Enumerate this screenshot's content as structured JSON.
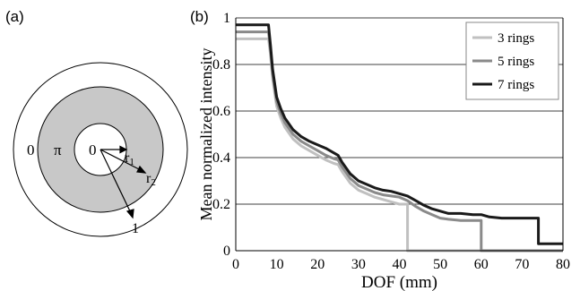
{
  "panel_a": {
    "label": "(a)",
    "zone_labels": {
      "center": "0",
      "ring": "π",
      "outer": "0"
    },
    "radius_labels": {
      "r1": "r",
      "r1_sub": "1",
      "r2": "r",
      "r2_sub": "2",
      "edge": "1"
    }
  },
  "chart_data": {
    "panel_label": "(b)",
    "type": "line",
    "xlabel": "DOF (mm)",
    "ylabel": "Mean normalized intensity",
    "xlim": [
      0,
      80
    ],
    "ylim": [
      0,
      1
    ],
    "x_ticks": [
      "0",
      "10",
      "20",
      "30",
      "40",
      "50",
      "60",
      "70",
      "80"
    ],
    "y_ticks": [
      "0",
      "0.2",
      "0.4",
      "0.6",
      "0.8",
      "1"
    ],
    "grid": "horizontal",
    "legend_position": "top-right",
    "colors": {
      "3 rings": "#c0c0c0",
      "5 rings": "#8a8a8a",
      "7 rings": "#1a1a1a"
    },
    "series": [
      {
        "name": "3 rings",
        "x": [
          0,
          8,
          8.5,
          9,
          10,
          11,
          12,
          14,
          16,
          18,
          20,
          22,
          24,
          25,
          26,
          28,
          30,
          32,
          34,
          36,
          38,
          40,
          42,
          42,
          80
        ],
        "y": [
          0.91,
          0.91,
          0.84,
          0.74,
          0.62,
          0.57,
          0.53,
          0.48,
          0.45,
          0.43,
          0.41,
          0.39,
          0.375,
          0.37,
          0.34,
          0.29,
          0.26,
          0.245,
          0.23,
          0.22,
          0.21,
          0.2,
          0.2,
          0.0,
          0.0
        ]
      },
      {
        "name": "5 rings",
        "x": [
          0,
          8,
          8.5,
          9,
          10,
          11,
          12,
          14,
          16,
          18,
          20,
          22,
          24,
          25,
          26,
          28,
          30,
          32,
          34,
          36,
          38,
          40,
          42,
          44,
          46,
          48,
          50,
          52,
          55,
          60,
          60,
          80
        ],
        "y": [
          0.94,
          0.94,
          0.86,
          0.76,
          0.64,
          0.59,
          0.55,
          0.5,
          0.47,
          0.45,
          0.43,
          0.41,
          0.395,
          0.39,
          0.36,
          0.31,
          0.28,
          0.265,
          0.25,
          0.24,
          0.235,
          0.23,
          0.215,
          0.19,
          0.17,
          0.155,
          0.14,
          0.135,
          0.13,
          0.13,
          0.0,
          0.0
        ]
      },
      {
        "name": "7 rings",
        "x": [
          0,
          8,
          8.5,
          9,
          10,
          11,
          12,
          14,
          16,
          18,
          20,
          22,
          24,
          25,
          26,
          28,
          30,
          32,
          34,
          36,
          38,
          40,
          42,
          44,
          46,
          48,
          50,
          52,
          55,
          58,
          60,
          62,
          65,
          70,
          74,
          74,
          80
        ],
        "y": [
          0.97,
          0.97,
          0.88,
          0.78,
          0.66,
          0.61,
          0.57,
          0.52,
          0.49,
          0.47,
          0.455,
          0.44,
          0.42,
          0.41,
          0.38,
          0.33,
          0.3,
          0.285,
          0.27,
          0.26,
          0.255,
          0.245,
          0.235,
          0.215,
          0.195,
          0.18,
          0.17,
          0.16,
          0.16,
          0.155,
          0.155,
          0.145,
          0.14,
          0.14,
          0.14,
          0.03,
          0.03
        ]
      }
    ]
  }
}
